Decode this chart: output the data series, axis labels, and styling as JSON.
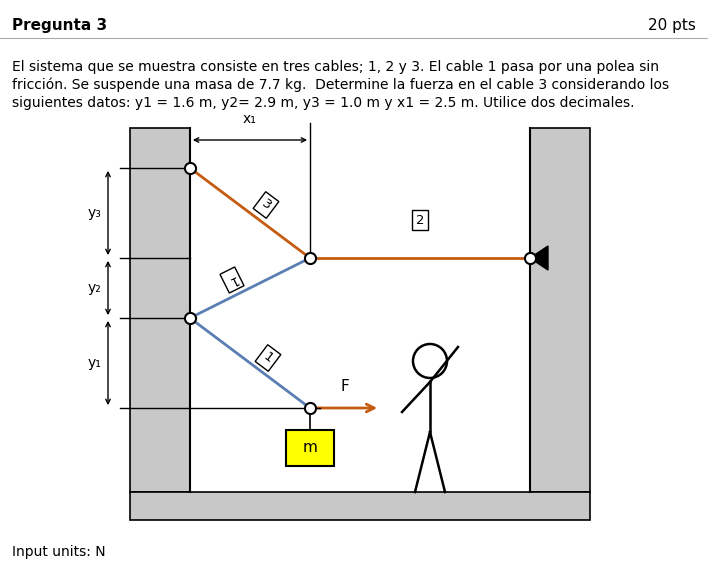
{
  "title": "Pregunta 3",
  "pts": "20 pts",
  "line1": "El sistema que se muestra consiste en tres cables; 1, 2 y 3. El cable 1 pasa por una polea sin",
  "line2": "fricción. Se suspende una masa de 7.7 kg.  Determine la fuerza en el cable 3 considerando los",
  "line3": "siguientes datos: y1 = 1.6 m, y2= 2.9 m, y3 = 1.0 m y x1 = 2.5 m. Utilice dos decimales.",
  "input_units": "Input units: N",
  "bg_color": "#ffffff",
  "wall_color": "#c8c8c8",
  "wall_hatch": "//",
  "cable1_color": "#5b7eb5",
  "cable2_color": "#c55a11",
  "cable3_color": "#c55a11",
  "mass_color": "#ffff00",
  "node_color": "black",
  "title_fontsize": 11,
  "text_fontsize": 10
}
